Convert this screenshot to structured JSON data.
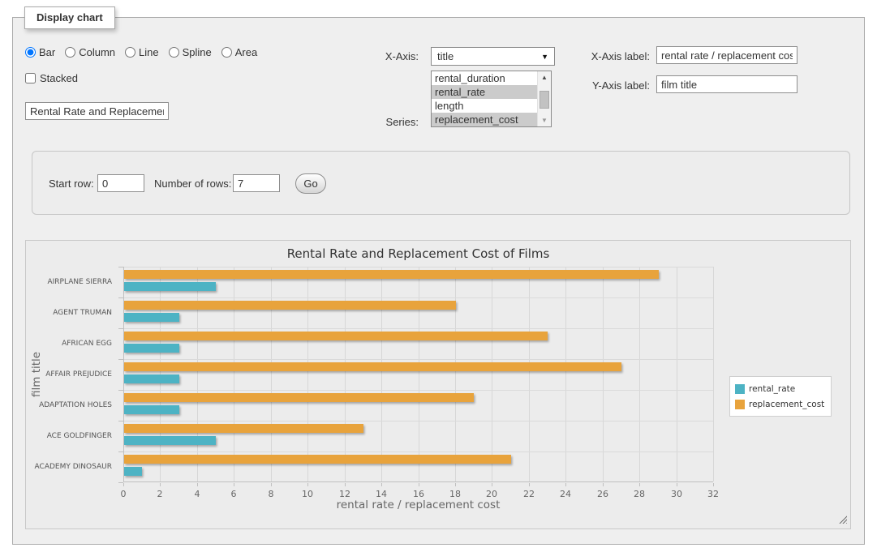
{
  "window": {
    "legend": "Display chart"
  },
  "chart_types": {
    "options": [
      {
        "label": "Bar",
        "selected": true
      },
      {
        "label": "Column",
        "selected": false
      },
      {
        "label": "Line",
        "selected": false
      },
      {
        "label": "Spline",
        "selected": false
      },
      {
        "label": "Area",
        "selected": false
      }
    ]
  },
  "stacked": {
    "label": "Stacked",
    "checked": false
  },
  "chart_title_input": {
    "value": "Rental Rate and Replacement Cost of Films"
  },
  "x_axis_select": {
    "label": "X-Axis:",
    "selected": "title"
  },
  "series_select": {
    "label": "Series:",
    "options": [
      {
        "label": "rental_duration",
        "selected": false
      },
      {
        "label": "rental_rate",
        "selected": true
      },
      {
        "label": "length",
        "selected": false
      },
      {
        "label": "replacement_cost",
        "selected": true
      }
    ]
  },
  "x_axis_label_field": {
    "label": "X-Axis label:",
    "value": "rental rate / replacement cost"
  },
  "y_axis_label_field": {
    "label": "Y-Axis label:",
    "value": "film title"
  },
  "row_controls": {
    "start_row_label": "Start row:",
    "start_row_value": "0",
    "num_rows_label": "Number of rows:",
    "num_rows_value": "7",
    "go_label": "Go"
  },
  "chart_data": {
    "type": "bar",
    "title": "Rental Rate and Replacement Cost of Films",
    "categories": [
      "AIRPLANE SIERRA",
      "AGENT TRUMAN",
      "AFRICAN EGG",
      "AFFAIR PREJUDICE",
      "ADAPTATION HOLES",
      "ACE GOLDFINGER",
      "ACADEMY DINOSAUR"
    ],
    "series": [
      {
        "name": "rental_rate",
        "color": "#4db3c4",
        "values": [
          4.99,
          2.99,
          2.99,
          2.99,
          2.99,
          4.99,
          0.99
        ]
      },
      {
        "name": "replacement_cost",
        "color": "#e8a33c",
        "values": [
          28.99,
          17.99,
          22.99,
          26.99,
          18.99,
          12.99,
          20.99
        ]
      }
    ],
    "xlabel": "rental rate / replacement cost",
    "ylabel": "film title",
    "xlim": [
      0,
      32
    ],
    "x_ticks": [
      0,
      2,
      4,
      6,
      8,
      10,
      12,
      14,
      16,
      18,
      20,
      22,
      24,
      26,
      28,
      30,
      32
    ],
    "legend_position": "right",
    "grid": true,
    "bar_order_top_to_bottom": [
      "replacement_cost",
      "rental_rate"
    ]
  }
}
